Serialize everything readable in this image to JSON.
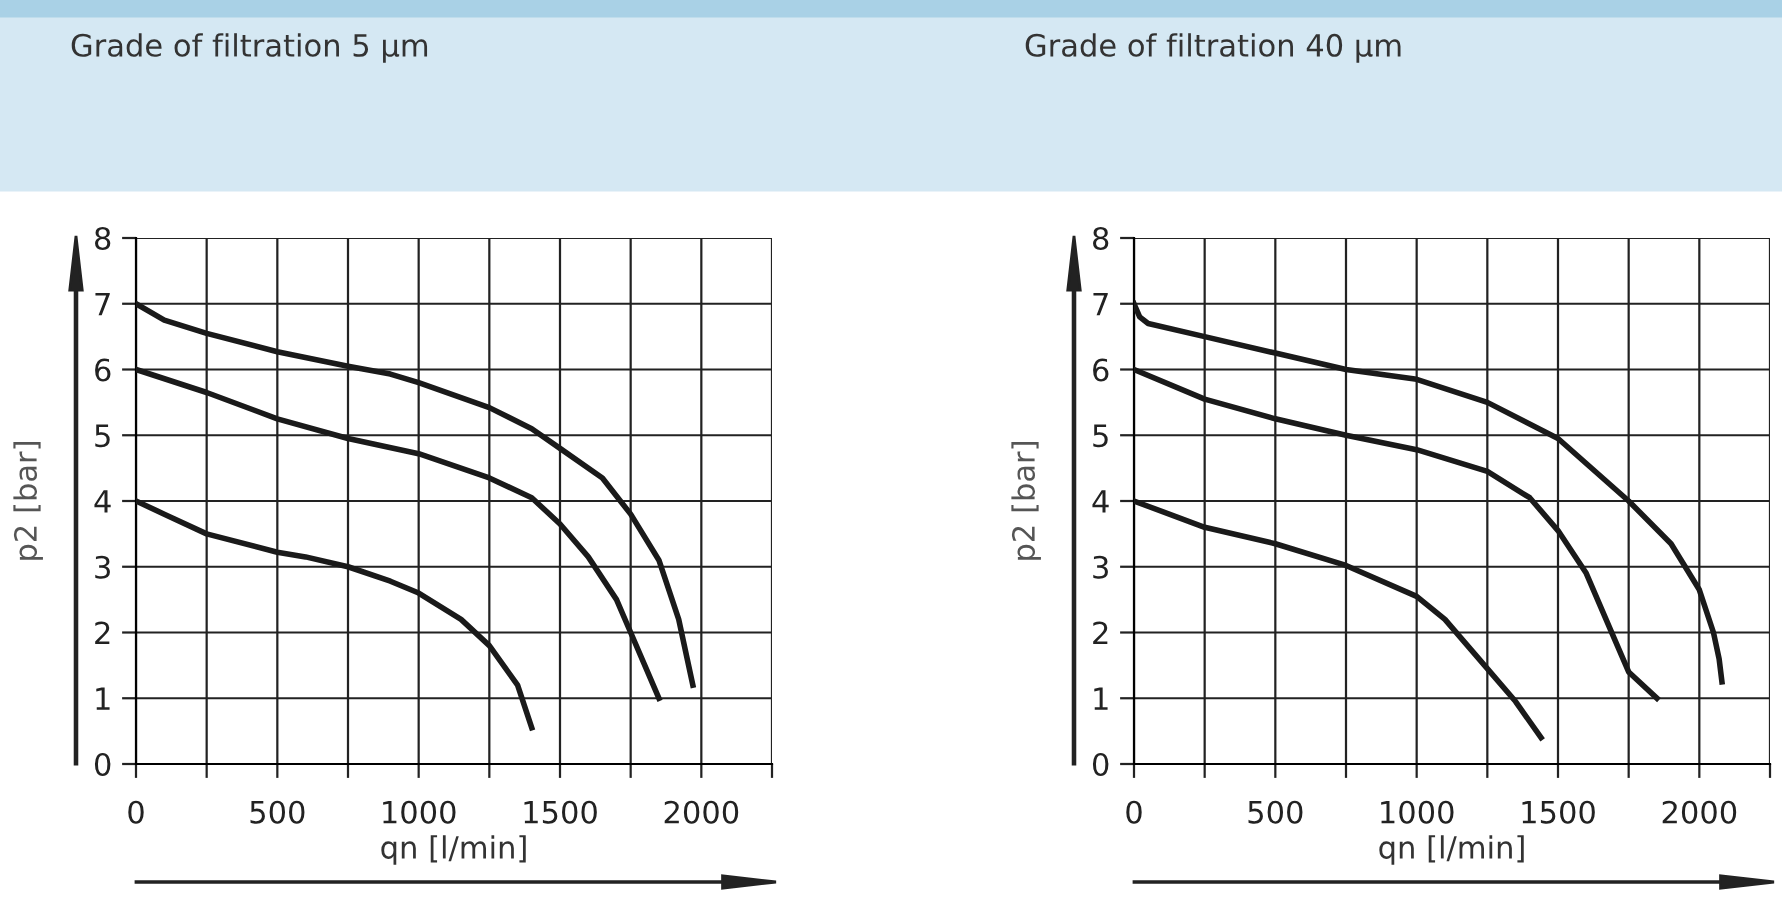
{
  "chart_data": [
    {
      "type": "line",
      "title": "Grade of filtration 5 µm",
      "xlabel": "qn [l/min]",
      "ylabel": "p2 [bar]",
      "xlim": [
        0,
        2250
      ],
      "ylim": [
        0,
        8
      ],
      "xticks": [
        0,
        {
          "value": 250,
          "label": null
        },
        500,
        {
          "value": 750,
          "label": null
        },
        1000,
        {
          "value": 1250,
          "label": null
        },
        1500,
        {
          "value": 1750,
          "label": null
        },
        2000,
        {
          "value": 2250,
          "label": null
        }
      ],
      "yticks": [
        0,
        1,
        2,
        3,
        4,
        5,
        6,
        7,
        8
      ],
      "grid": true,
      "marker": "none",
      "line_style": "solid",
      "series": [
        {
          "color": "#1a1a1a",
          "x": [
            0,
            100,
            250,
            500,
            750,
            900,
            1000,
            1250,
            1400,
            1500,
            1650,
            1750,
            1850,
            1920,
            1950,
            1970
          ],
          "values": [
            7,
            6.75,
            6.55,
            6.27,
            6.05,
            5.93,
            5.8,
            5.42,
            5.1,
            4.8,
            4.35,
            3.8,
            3.1,
            2.2,
            1.6,
            1.2
          ]
        },
        {
          "color": "#1a1a1a",
          "x": [
            0,
            250,
            500,
            750,
            1000,
            1250,
            1400,
            1500,
            1600,
            1700,
            1750,
            1800,
            1850
          ],
          "values": [
            6,
            5.65,
            5.25,
            4.95,
            4.72,
            4.35,
            4.05,
            3.65,
            3.15,
            2.5,
            2.0,
            1.5,
            1.0
          ]
        },
        {
          "color": "#1a1a1a",
          "x": [
            0,
            100,
            250,
            500,
            600,
            750,
            900,
            1000,
            1150,
            1250,
            1350,
            1400
          ],
          "values": [
            4,
            3.8,
            3.5,
            3.22,
            3.15,
            3.0,
            2.78,
            2.6,
            2.2,
            1.8,
            1.2,
            0.55
          ]
        }
      ]
    },
    {
      "type": "line",
      "title": "Grade of filtration 40 µm",
      "xlabel": "qn [l/min]",
      "ylabel": "p2 [bar]",
      "xlim": [
        0,
        2250
      ],
      "ylim": [
        0,
        8
      ],
      "xticks": [
        0,
        {
          "value": 250,
          "label": null
        },
        500,
        {
          "value": 750,
          "label": null
        },
        1000,
        {
          "value": 1250,
          "label": null
        },
        1500,
        {
          "value": 1750,
          "label": null
        },
        2000,
        {
          "value": 2250,
          "label": null
        }
      ],
      "yticks": [
        0,
        1,
        2,
        3,
        4,
        5,
        6,
        7,
        8
      ],
      "grid": true,
      "marker": "none",
      "line_style": "solid",
      "series": [
        {
          "color": "#1a1a1a",
          "x": [
            0,
            20,
            50,
            250,
            500,
            750,
            1000,
            1250,
            1500,
            1750,
            1900,
            2000,
            2050,
            2070,
            2080
          ],
          "values": [
            7,
            6.8,
            6.7,
            6.5,
            6.25,
            6.0,
            5.85,
            5.5,
            4.95,
            4.0,
            3.35,
            2.65,
            2.0,
            1.6,
            1.25
          ]
        },
        {
          "color": "#1a1a1a",
          "x": [
            0,
            250,
            500,
            750,
            1000,
            1250,
            1400,
            1500,
            1600,
            1700,
            1750,
            1850
          ],
          "values": [
            6,
            5.55,
            5.25,
            5.0,
            4.78,
            4.45,
            4.05,
            3.55,
            2.9,
            1.9,
            1.4,
            1.0
          ]
        },
        {
          "color": "#1a1a1a",
          "x": [
            0,
            250,
            500,
            750,
            1000,
            1100,
            1250,
            1350,
            1440
          ],
          "values": [
            4,
            3.6,
            3.35,
            3.02,
            2.55,
            2.2,
            1.45,
            0.95,
            0.4
          ]
        }
      ]
    }
  ]
}
